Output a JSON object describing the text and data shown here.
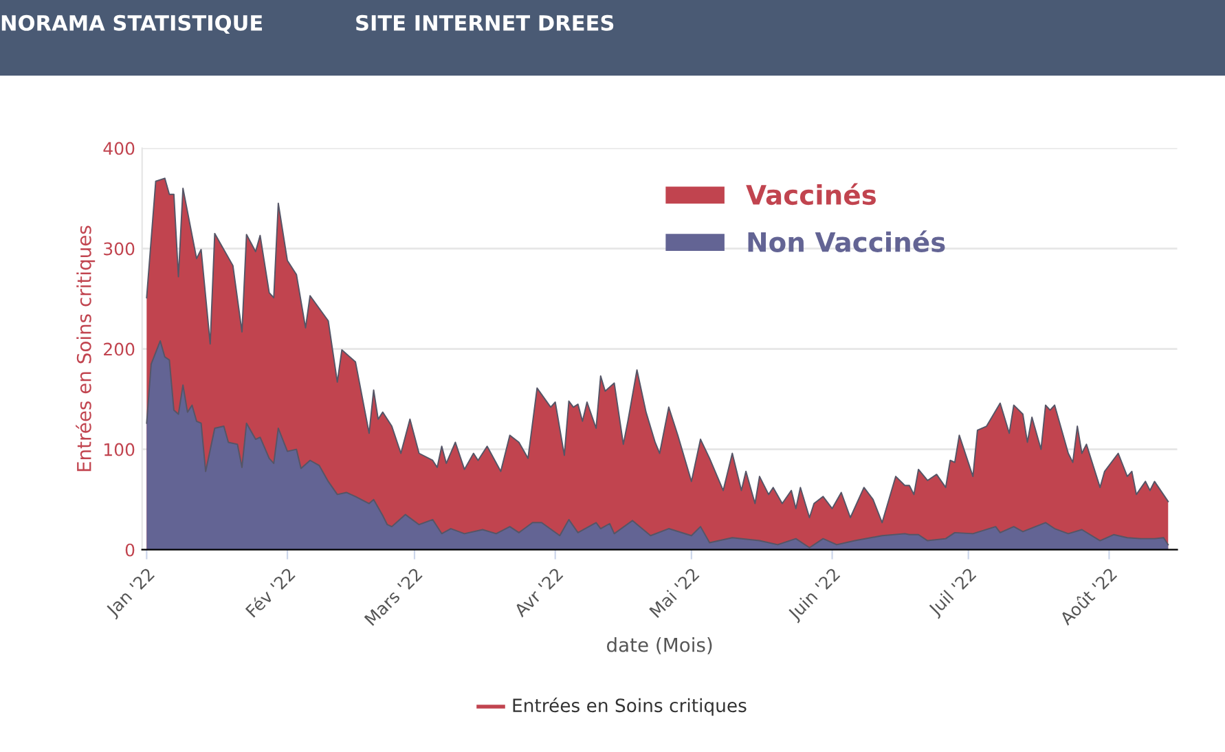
{
  "chart_data": {
    "type": "area",
    "ylabel": "Entrées en Soins critiques",
    "xlabel": "date (Mois)",
    "annotations": [
      "NORAMA STATISTIQUE",
      "SITE INTERNET DREES",
      "Entrées en Soins critiques"
    ],
    "xlim": [
      "2021-12-31",
      "2022-08-16"
    ],
    "xticks": [
      {
        "value": "2022-01-01",
        "label": "Jan '22"
      },
      {
        "value": "2022-02-01",
        "label": "Fév '22"
      },
      {
        "value": "2022-03-01",
        "label": "Mars '22"
      },
      {
        "value": "2022-04-01",
        "label": "Avr '22"
      },
      {
        "value": "2022-05-01",
        "label": "Mai '22"
      },
      {
        "value": "2022-06-01",
        "label": "Juin '22"
      },
      {
        "value": "2022-07-01",
        "label": "Juil '22"
      },
      {
        "value": "2022-08-01",
        "label": "Août '22"
      }
    ],
    "ylim": [
      0,
      400
    ],
    "yticks": [
      0,
      100,
      200,
      300,
      400
    ],
    "grid": "y",
    "legend": "top right",
    "series": [
      {
        "name": "Vaccinés",
        "color": "#c1444f",
        "x": [
          "2022-01-01",
          "2022-01-03",
          "2022-01-05",
          "2022-01-06",
          "2022-01-07",
          "2022-01-08",
          "2022-01-09",
          "2022-01-12",
          "2022-01-13",
          "2022-01-15",
          "2022-01-16",
          "2022-01-20",
          "2022-01-22",
          "2022-01-23",
          "2022-01-25",
          "2022-01-26",
          "2022-01-28",
          "2022-01-29",
          "2022-01-30",
          "2022-02-01",
          "2022-02-03",
          "2022-02-05",
          "2022-02-06",
          "2022-02-10",
          "2022-02-12",
          "2022-02-13",
          "2022-02-16",
          "2022-02-19",
          "2022-02-20",
          "2022-02-21",
          "2022-02-22",
          "2022-02-24",
          "2022-02-26",
          "2022-02-28",
          "2022-03-02",
          "2022-03-05",
          "2022-03-06",
          "2022-03-07",
          "2022-03-08",
          "2022-03-10",
          "2022-03-12",
          "2022-03-14",
          "2022-03-15",
          "2022-03-17",
          "2022-03-20",
          "2022-03-22",
          "2022-03-24",
          "2022-03-26",
          "2022-03-28",
          "2022-03-31",
          "2022-04-01",
          "2022-04-03",
          "2022-04-04",
          "2022-04-05",
          "2022-04-06",
          "2022-04-07",
          "2022-04-08",
          "2022-04-10",
          "2022-04-11",
          "2022-04-12",
          "2022-04-14",
          "2022-04-16",
          "2022-04-17",
          "2022-04-19",
          "2022-04-21",
          "2022-04-23",
          "2022-04-24",
          "2022-04-26",
          "2022-04-28",
          "2022-05-01",
          "2022-05-03",
          "2022-05-05",
          "2022-05-08",
          "2022-05-10",
          "2022-05-12",
          "2022-05-13",
          "2022-05-15",
          "2022-05-16",
          "2022-05-18",
          "2022-05-19",
          "2022-05-21",
          "2022-05-23",
          "2022-05-24",
          "2022-05-25",
          "2022-05-27",
          "2022-05-28",
          "2022-05-30",
          "2022-06-01",
          "2022-06-03",
          "2022-06-05",
          "2022-06-08",
          "2022-06-10",
          "2022-06-12",
          "2022-06-15",
          "2022-06-17",
          "2022-06-18",
          "2022-06-19",
          "2022-06-20",
          "2022-06-22",
          "2022-06-24",
          "2022-06-26",
          "2022-06-27",
          "2022-06-28",
          "2022-06-29",
          "2022-07-02",
          "2022-07-03",
          "2022-07-05",
          "2022-07-08",
          "2022-07-10",
          "2022-07-11",
          "2022-07-13",
          "2022-07-14",
          "2022-07-15",
          "2022-07-17",
          "2022-07-18",
          "2022-07-19",
          "2022-07-20",
          "2022-07-23",
          "2022-07-24",
          "2022-07-25",
          "2022-07-26",
          "2022-07-27",
          "2022-07-30",
          "2022-07-31",
          "2022-08-03",
          "2022-08-05",
          "2022-08-06",
          "2022-08-07",
          "2022-08-09",
          "2022-08-10",
          "2022-08-11",
          "2022-08-14"
        ],
        "values": [
          251,
          367,
          370,
          354,
          354,
          272,
          360,
          290,
          299,
          205,
          315,
          283,
          217,
          314,
          297,
          313,
          256,
          251,
          345,
          288,
          274,
          221,
          253,
          228,
          167,
          199,
          187,
          116,
          159,
          130,
          137,
          123,
          96,
          130,
          96,
          89,
          82,
          103,
          86,
          107,
          80,
          96,
          89,
          103,
          78,
          114,
          107,
          91,
          161,
          142,
          147,
          94,
          148,
          142,
          145,
          128,
          147,
          121,
          173,
          158,
          166,
          105,
          128,
          179,
          137,
          107,
          96,
          142,
          114,
          68,
          110,
          91,
          59,
          96,
          59,
          78,
          46,
          73,
          55,
          62,
          46,
          59,
          41,
          62,
          32,
          46,
          53,
          41,
          57,
          32,
          62,
          50,
          27,
          73,
          64,
          64,
          55,
          80,
          69,
          75,
          62,
          89,
          87,
          114,
          73,
          119,
          123,
          146,
          116,
          144,
          135,
          107,
          132,
          100,
          144,
          139,
          144,
          96,
          87,
          123,
          96,
          105,
          62,
          78,
          96,
          73,
          78,
          55,
          68,
          59,
          68,
          48
        ]
      },
      {
        "name": "Non Vaccinés",
        "color": "#636494",
        "x": [
          "2022-01-01",
          "2022-01-02",
          "2022-01-04",
          "2022-01-05",
          "2022-01-06",
          "2022-01-07",
          "2022-01-08",
          "2022-01-09",
          "2022-01-10",
          "2022-01-11",
          "2022-01-12",
          "2022-01-13",
          "2022-01-14",
          "2022-01-16",
          "2022-01-18",
          "2022-01-19",
          "2022-01-21",
          "2022-01-22",
          "2022-01-23",
          "2022-01-25",
          "2022-01-26",
          "2022-01-28",
          "2022-01-29",
          "2022-01-30",
          "2022-02-01",
          "2022-02-03",
          "2022-02-04",
          "2022-02-06",
          "2022-02-08",
          "2022-02-10",
          "2022-02-12",
          "2022-02-14",
          "2022-02-16",
          "2022-02-19",
          "2022-02-20",
          "2022-02-22",
          "2022-02-23",
          "2022-02-24",
          "2022-02-27",
          "2022-03-02",
          "2022-03-05",
          "2022-03-07",
          "2022-03-09",
          "2022-03-12",
          "2022-03-16",
          "2022-03-19",
          "2022-03-22",
          "2022-03-24",
          "2022-03-27",
          "2022-03-29",
          "2022-04-02",
          "2022-04-04",
          "2022-04-06",
          "2022-04-10",
          "2022-04-11",
          "2022-04-13",
          "2022-04-14",
          "2022-04-18",
          "2022-04-22",
          "2022-04-26",
          "2022-05-01",
          "2022-05-03",
          "2022-05-05",
          "2022-05-10",
          "2022-05-16",
          "2022-05-20",
          "2022-05-24",
          "2022-05-27",
          "2022-05-30",
          "2022-06-02",
          "2022-06-06",
          "2022-06-12",
          "2022-06-17",
          "2022-06-18",
          "2022-06-20",
          "2022-06-22",
          "2022-06-26",
          "2022-06-28",
          "2022-07-02",
          "2022-07-07",
          "2022-07-08",
          "2022-07-11",
          "2022-07-13",
          "2022-07-18",
          "2022-07-20",
          "2022-07-23",
          "2022-07-26",
          "2022-07-30",
          "2022-08-02",
          "2022-08-05",
          "2022-08-08",
          "2022-08-11",
          "2022-08-13",
          "2022-08-14"
        ],
        "values": [
          126,
          185,
          208,
          192,
          189,
          139,
          135,
          164,
          137,
          144,
          128,
          126,
          78,
          121,
          123,
          107,
          105,
          82,
          126,
          110,
          112,
          91,
          86,
          121,
          98,
          100,
          81,
          89,
          84,
          68,
          55,
          57,
          53,
          46,
          50,
          34,
          25,
          23,
          35,
          25,
          30,
          16,
          21,
          16,
          20,
          16,
          23,
          17,
          27,
          27,
          14,
          30,
          17,
          27,
          21,
          26,
          16,
          29,
          14,
          21,
          14,
          23,
          7,
          12,
          9,
          5,
          11,
          2,
          11,
          5,
          9,
          14,
          16,
          15,
          15,
          9,
          11,
          17,
          16,
          23,
          17,
          23,
          18,
          27,
          21,
          16,
          20,
          9,
          15,
          12,
          11,
          11,
          12,
          5
        ]
      }
    ]
  }
}
